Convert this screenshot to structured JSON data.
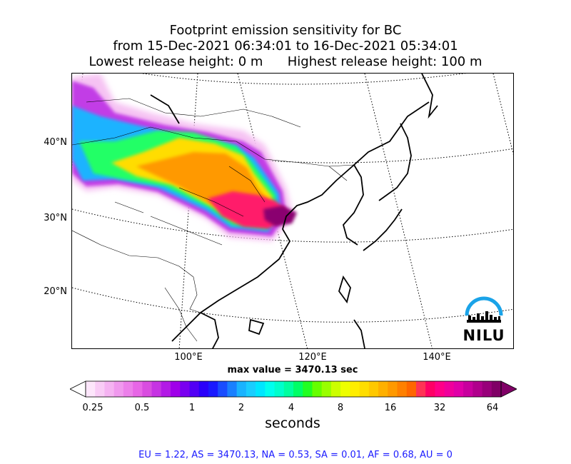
{
  "title": {
    "line1": "Footprint emission sensitivity for BC",
    "line2": "from 15-Dec-2021 06:34:01 to 16-Dec-2021 05:34:01",
    "line3": "Lowest release height: 0 m      Highest release height: 100 m"
  },
  "map": {
    "lat_labels": [
      "40°N",
      "30°N",
      "20°N"
    ],
    "lon_labels": [
      "100°E",
      "120°E",
      "140°E"
    ],
    "logo_text": "NILU"
  },
  "max_value": "max value = 3470.13 sec",
  "colorbar": {
    "ticks": [
      "0.25",
      "0.5",
      "1",
      "2",
      "4",
      "8",
      "16",
      "32",
      "64"
    ],
    "unit": "seconds",
    "colors": [
      "#ffffff",
      "#fde6fb",
      "#f9ccf6",
      "#f5b3f2",
      "#f099ee",
      "#ec80ea",
      "#e766e6",
      "#d94de0",
      "#c633e3",
      "#b31ae6",
      "#a000e9",
      "#7a00f0",
      "#5200f5",
      "#2a00fa",
      "#1a1aff",
      "#1a4dff",
      "#1a80ff",
      "#1ab3ff",
      "#1acdff",
      "#00e6ff",
      "#00ffee",
      "#00ffcc",
      "#00ffa0",
      "#00ff66",
      "#22ff22",
      "#66ff00",
      "#99ff00",
      "#ccff00",
      "#eeff00",
      "#ffee00",
      "#ffdd00",
      "#ffc800",
      "#ffb000",
      "#ff9900",
      "#ff8000",
      "#ff6600",
      "#ff3355",
      "#ff0066",
      "#ff0088",
      "#f0009c",
      "#e000a8",
      "#c8009e",
      "#b0008c",
      "#98007a",
      "#800066"
    ]
  },
  "footer": "EU = 1.22,  AS = 3470.13,  NA = 0.53,  SA = 0.01,  AF = 0.68,  AU = 0"
}
